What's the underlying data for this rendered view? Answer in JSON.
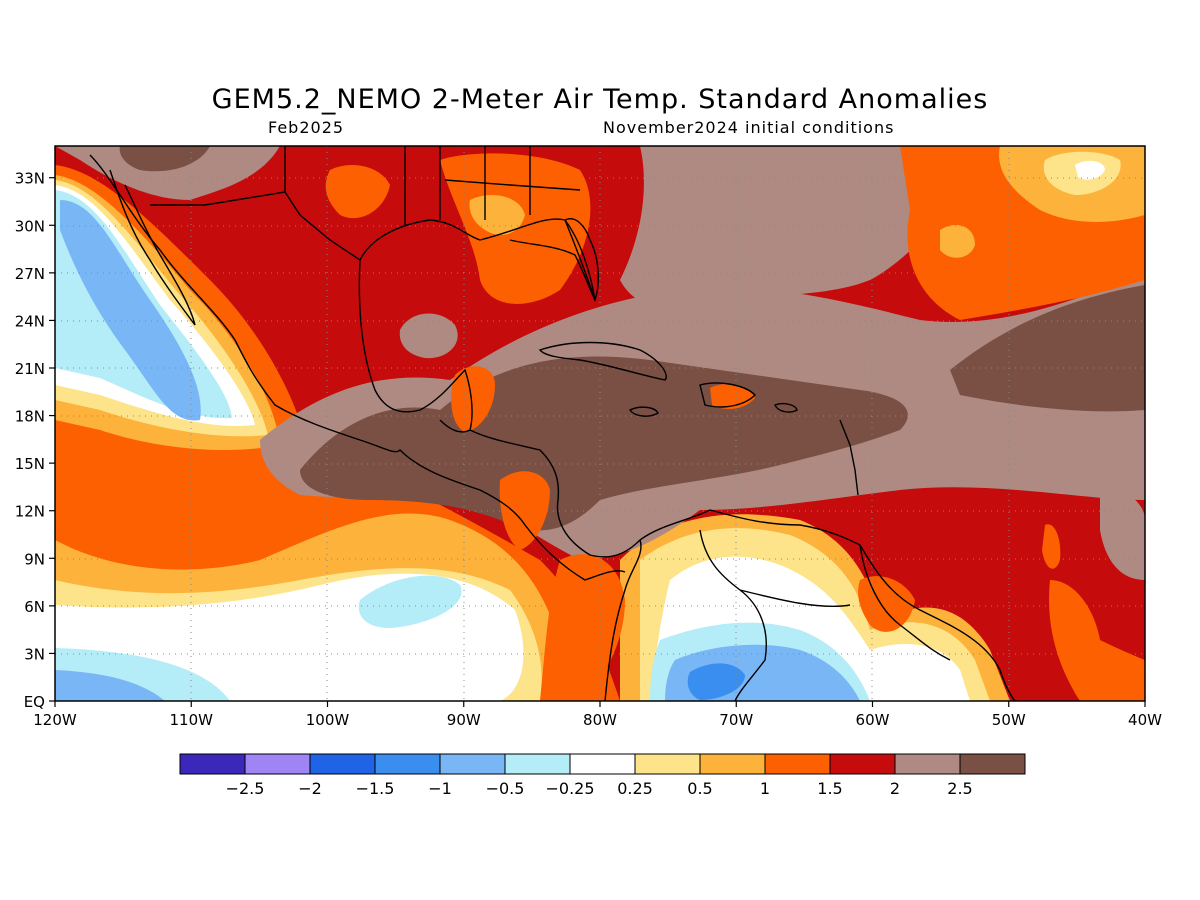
{
  "title": "GEM5.2_NEMO 2-Meter Air Temp. Standard Anomalies",
  "valid_month": "Feb2025",
  "init_conditions": "November2024 initial conditions",
  "map": {
    "lon_range": [
      -120,
      -40
    ],
    "lat_range": [
      0,
      35
    ],
    "lon_ticks": [
      {
        "value": -120,
        "label": "120W"
      },
      {
        "value": -110,
        "label": "110W"
      },
      {
        "value": -100,
        "label": "100W"
      },
      {
        "value": -90,
        "label": "90W"
      },
      {
        "value": -80,
        "label": "80W"
      },
      {
        "value": -70,
        "label": "70W"
      },
      {
        "value": -60,
        "label": "60W"
      },
      {
        "value": -50,
        "label": "50W"
      },
      {
        "value": -40,
        "label": "40W"
      }
    ],
    "lat_ticks": [
      {
        "value": 0,
        "label": "EQ"
      },
      {
        "value": 3,
        "label": "3N"
      },
      {
        "value": 6,
        "label": "6N"
      },
      {
        "value": 9,
        "label": "9N"
      },
      {
        "value": 12,
        "label": "12N"
      },
      {
        "value": 15,
        "label": "15N"
      },
      {
        "value": 18,
        "label": "18N"
      },
      {
        "value": 21,
        "label": "21N"
      },
      {
        "value": 24,
        "label": "24N"
      },
      {
        "value": 27,
        "label": "27N"
      },
      {
        "value": 30,
        "label": "30N"
      },
      {
        "value": 33,
        "label": "33N"
      }
    ],
    "grid": "dotted"
  },
  "colorbar": {
    "colors": [
      "#3b27ba",
      "#9e84f5",
      "#1f64e6",
      "#3a8ef0",
      "#79b6f5",
      "#b4ecf8",
      "#ffffff",
      "#fde48a",
      "#fdb23c",
      "#fc6000",
      "#c50b0b",
      "#ae8a82",
      "#7a4f44"
    ],
    "labels": [
      "-2.5",
      "-2",
      "-1.5",
      "-1",
      "-0.5",
      "-0.25",
      "0.25",
      "0.5",
      "1",
      "1.5",
      "2",
      "2.5"
    ]
  }
}
